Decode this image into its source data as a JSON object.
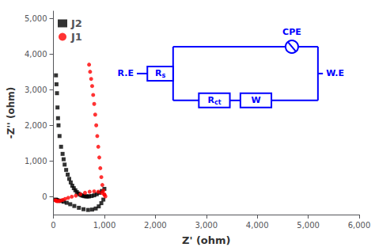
{
  "chart_data": {
    "type": "scatter",
    "xlabel": "Z' (ohm)",
    "ylabel": "-Z'' (ohm)",
    "xlim": [
      0,
      6000
    ],
    "ylim": [
      -500,
      5200
    ],
    "xticks": [
      0,
      1000,
      2000,
      3000,
      4000,
      5000,
      6000
    ],
    "yticks": [
      0,
      1000,
      2000,
      3000,
      4000,
      5000
    ],
    "grid": false,
    "legend": "upper left",
    "series": [
      {
        "name": "J2",
        "color": "black",
        "marker": "square",
        "x": [
          50,
          60,
          70,
          80,
          90,
          100,
          120,
          150,
          180,
          200,
          220,
          250,
          280,
          310,
          340,
          370,
          400,
          430,
          460,
          490,
          520,
          550,
          580,
          610,
          640,
          670,
          700,
          750,
          800,
          850,
          900,
          950,
          1000,
          980,
          940,
          890,
          830,
          760,
          680,
          590,
          500,
          410,
          330,
          260,
          200,
          150,
          110,
          80,
          60,
          45
        ],
        "values": [
          3400,
          3150,
          2900,
          2500,
          2200,
          2000,
          1700,
          1400,
          1200,
          1050,
          900,
          750,
          620,
          500,
          400,
          310,
          240,
          180,
          130,
          90,
          60,
          40,
          25,
          15,
          10,
          8,
          10,
          20,
          40,
          70,
          110,
          160,
          220,
          -80,
          -180,
          -270,
          -330,
          -360,
          -370,
          -350,
          -310,
          -260,
          -210,
          -170,
          -140,
          -120,
          -110,
          -100,
          -90,
          -80
        ]
      },
      {
        "name": "J1",
        "color": "red",
        "marker": "circle",
        "x": [
          700,
          720,
          740,
          760,
          780,
          800,
          820,
          840,
          860,
          880,
          900,
          920,
          940,
          960,
          980,
          1000,
          1020,
          1000,
          950,
          880,
          800,
          710,
          620,
          530,
          440,
          360,
          290,
          230,
          180,
          140,
          110,
          85,
          65,
          50,
          40
        ],
        "values": [
          3700,
          3500,
          3300,
          3100,
          2850,
          2600,
          2300,
          2000,
          1700,
          1400,
          1100,
          800,
          550,
          330,
          170,
          60,
          10,
          60,
          110,
          140,
          150,
          140,
          110,
          70,
          30,
          0,
          -30,
          -60,
          -90,
          -110,
          -120,
          -125,
          -120,
          -110,
          -100
        ]
      }
    ],
    "annotations": [
      {
        "text": "R.E",
        "color": "blue"
      },
      {
        "text": "Rs",
        "color": "blue"
      },
      {
        "text": "CPE",
        "color": "blue"
      },
      {
        "text": "Rct",
        "color": "blue"
      },
      {
        "text": "W",
        "color": "blue"
      },
      {
        "text": "W.E",
        "color": "blue"
      }
    ]
  }
}
